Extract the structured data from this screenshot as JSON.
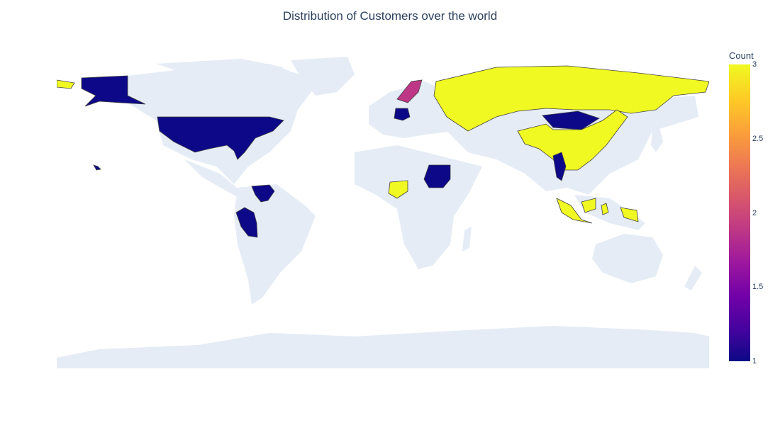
{
  "title": "Distribution of Customers over the world",
  "colorbar": {
    "title": "Count",
    "ticks": [
      "3",
      "2.5",
      "2",
      "1.5",
      "1"
    ],
    "tick_values": [
      3,
      2.5,
      2,
      1.5,
      1
    ]
  },
  "colors": {
    "land": "#e5ecf6",
    "border": "#444444",
    "scale": [
      "#0d0887",
      "#46039f",
      "#7201a8",
      "#9c179e",
      "#bd3786",
      "#d8576b",
      "#ed7953",
      "#fb9f3a",
      "#fdca26",
      "#f0f921"
    ]
  },
  "chart_data": {
    "type": "choropleth",
    "title": "Distribution of Customers over the world",
    "colorbar_title": "Count",
    "zrange": [
      1,
      3
    ],
    "locations": [
      {
        "country": "United States",
        "value": 1
      },
      {
        "country": "Venezuela",
        "value": 1
      },
      {
        "country": "Peru",
        "value": 1
      },
      {
        "country": "Germany",
        "value": 1
      },
      {
        "country": "Sudan",
        "value": 1
      },
      {
        "country": "Mongolia",
        "value": 1
      },
      {
        "country": "Myanmar",
        "value": 1
      },
      {
        "country": "Sweden",
        "value": 2
      },
      {
        "country": "Russia",
        "value": 3
      },
      {
        "country": "China",
        "value": 3
      },
      {
        "country": "Nigeria",
        "value": 3
      },
      {
        "country": "Indonesia",
        "value": 3
      }
    ]
  }
}
